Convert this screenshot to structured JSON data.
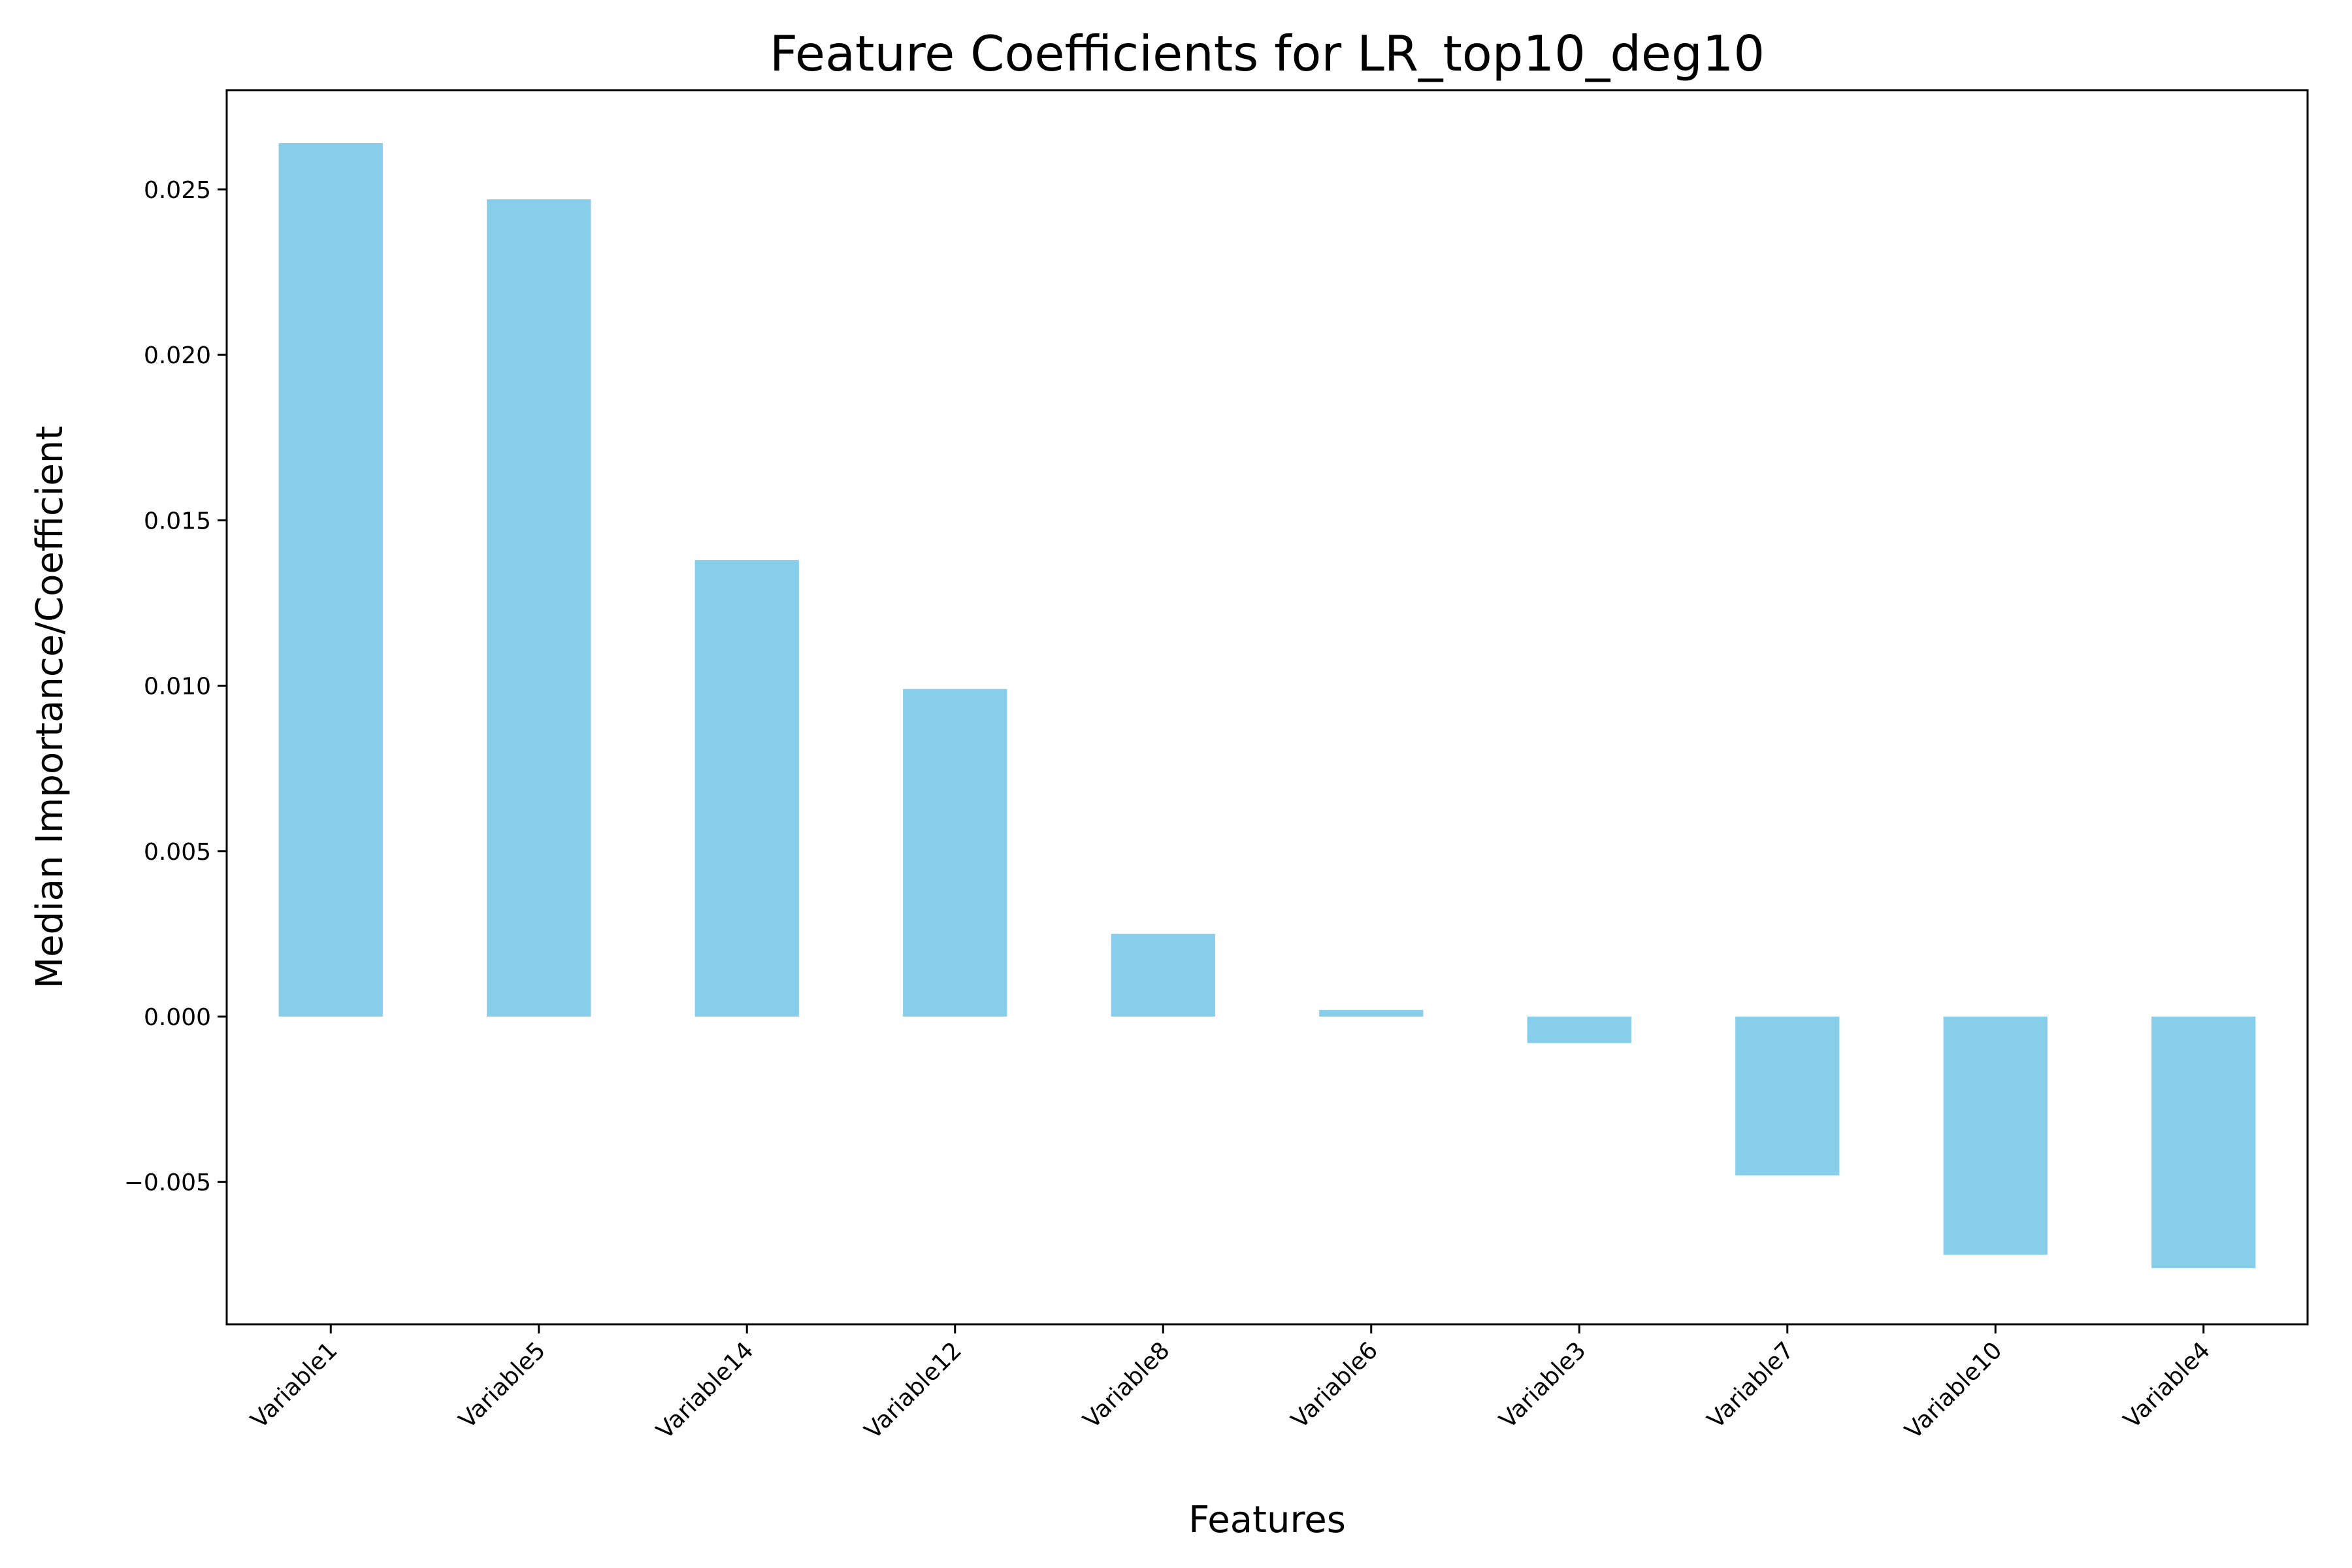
{
  "chart_data": {
    "type": "bar",
    "title": "Feature Coefficients for LR_top10_deg10",
    "xlabel": "Features",
    "ylabel": "Median Importance/Coefficient",
    "categories": [
      "Variable1",
      "Variable5",
      "Variable14",
      "Variable12",
      "Variable8",
      "Variable6",
      "Variable3",
      "Variable7",
      "Variable10",
      "Variable4"
    ],
    "values": [
      0.0264,
      0.0247,
      0.0138,
      0.0099,
      0.0025,
      0.0002,
      -0.0008,
      -0.0048,
      -0.0072,
      -0.0076
    ],
    "ylim": [
      -0.0093,
      0.028
    ],
    "yticks": [
      -0.005,
      0.0,
      0.005,
      0.01,
      0.015,
      0.02,
      0.025
    ],
    "ytick_labels": [
      "−0.005",
      "0.000",
      "0.005",
      "0.010",
      "0.015",
      "0.020",
      "0.025"
    ],
    "grid": false,
    "colors": {
      "bar": "#87CEEB",
      "axis": "#000000",
      "background": "#FFFFFF"
    }
  }
}
